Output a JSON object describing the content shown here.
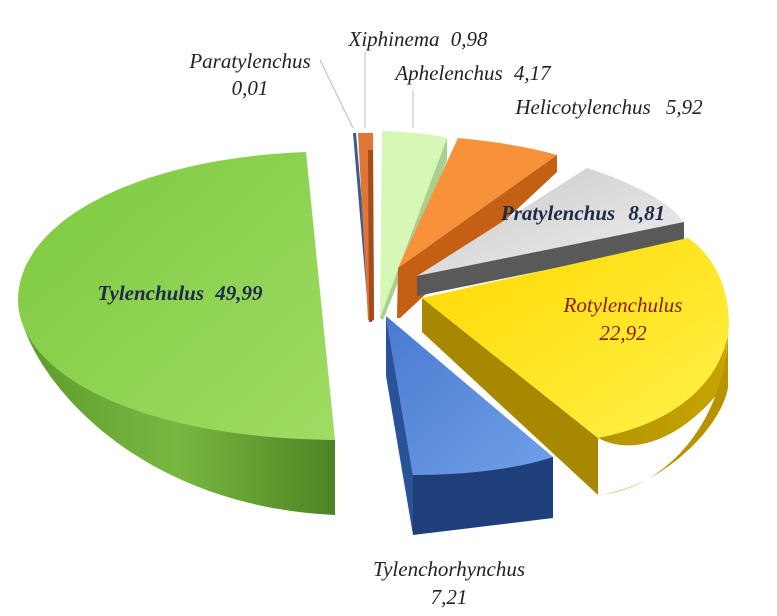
{
  "chart_data": {
    "type": "pie",
    "title": "",
    "slices": [
      {
        "label": "Paratylenchus",
        "value": 0.01,
        "value_text": "0,01",
        "color": "#8faadc"
      },
      {
        "label": "Xiphinema",
        "value": 0.98,
        "value_text": "0,98",
        "color": "#e07b39"
      },
      {
        "label": "Aphelenchus",
        "value": 4.17,
        "value_text": "4,17",
        "color": "#d2f5b0"
      },
      {
        "label": "Helicotylenchus",
        "value": 5.92,
        "value_text": "5,92",
        "color": "#f79646"
      },
      {
        "label": "Pratylenchus",
        "value": 8.81,
        "value_text": "8,81",
        "color": "#d9d9d9"
      },
      {
        "label": "Rotylenchulus",
        "value": 22.92,
        "value_text": "22,92",
        "color": "#ffe600"
      },
      {
        "label": "Tylenchorhynchus",
        "value": 7.21,
        "value_text": "7,21",
        "color": "#4f81bd"
      },
      {
        "label": "Tylenchulus",
        "value": 49.99,
        "value_text": "49,99",
        "color": "#8fd14f"
      }
    ],
    "style": "3d-exploded"
  }
}
